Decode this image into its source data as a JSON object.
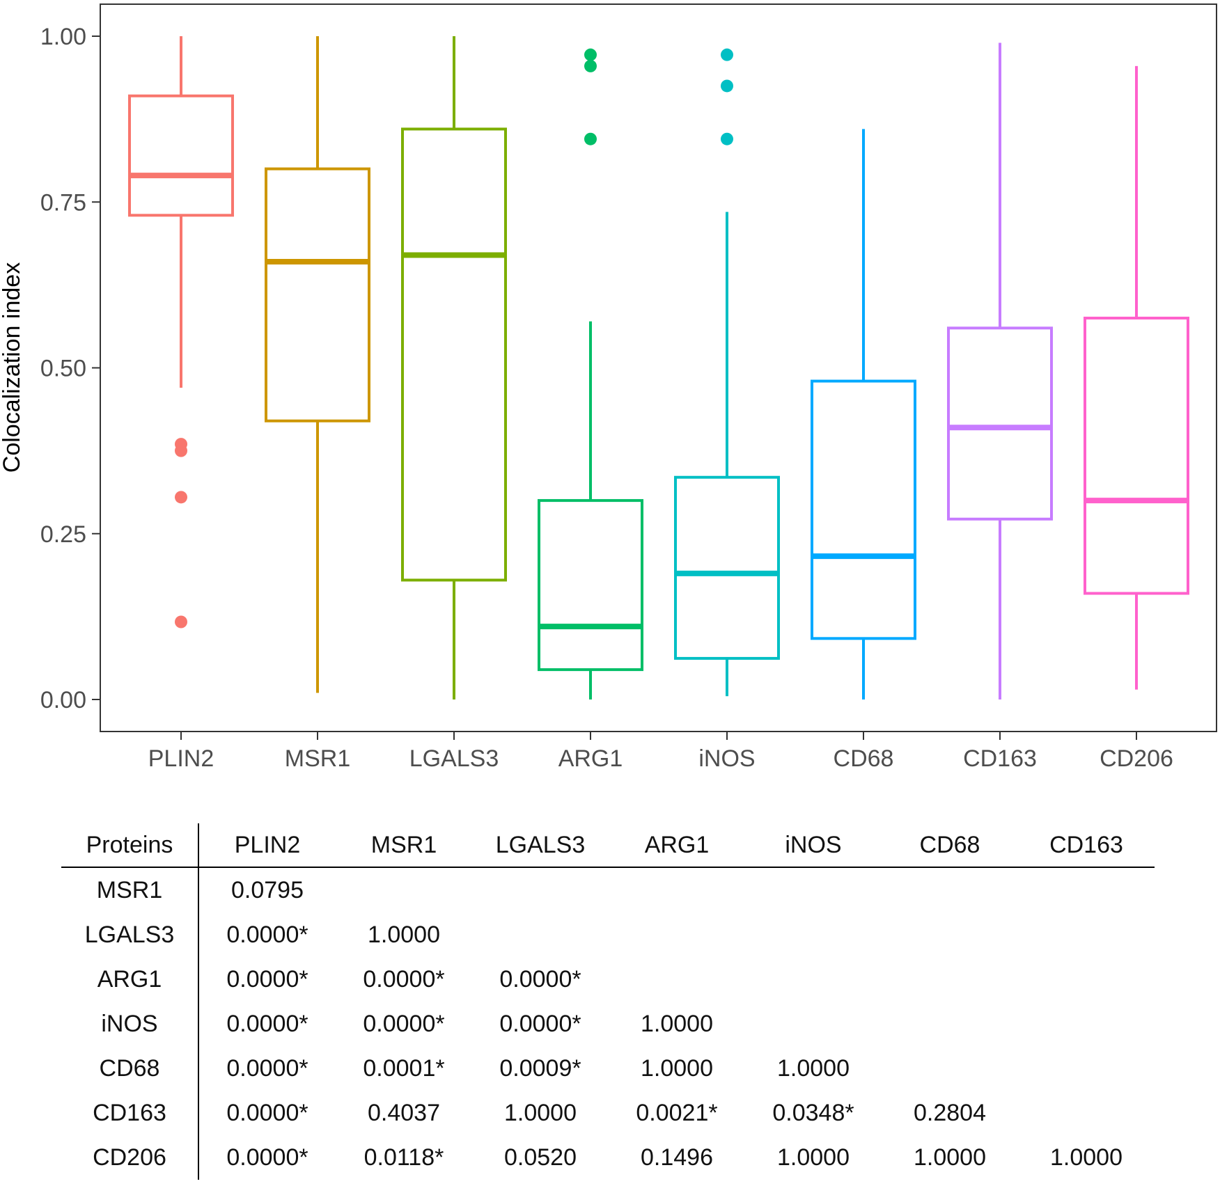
{
  "chart_data": {
    "type": "box",
    "ylabel": "Colocalization index",
    "xlabel": "",
    "ylim": [
      -0.05,
      1.05
    ],
    "yticks": [
      "0.00",
      "0.25",
      "0.50",
      "0.75",
      "1.00"
    ],
    "categories": [
      "PLIN2",
      "MSR1",
      "LGALS3",
      "ARG1",
      "iNOS",
      "CD68",
      "CD163",
      "CD206"
    ],
    "boxes": [
      {
        "name": "PLIN2",
        "color": "#F8766D",
        "min": 0.47,
        "q1": 0.73,
        "median": 0.79,
        "q3": 0.91,
        "max": 1.0,
        "outliers": [
          0.385,
          0.375,
          0.305,
          0.117
        ]
      },
      {
        "name": "MSR1",
        "color": "#CD9600",
        "min": 0.01,
        "q1": 0.42,
        "median": 0.66,
        "q3": 0.8,
        "max": 1.0,
        "outliers": []
      },
      {
        "name": "LGALS3",
        "color": "#7CAE00",
        "min": 0.0,
        "q1": 0.18,
        "median": 0.67,
        "q3": 0.86,
        "max": 1.0,
        "outliers": []
      },
      {
        "name": "ARG1",
        "color": "#00BE67",
        "min": 0.0,
        "q1": 0.045,
        "median": 0.11,
        "q3": 0.3,
        "max": 0.57,
        "outliers": [
          0.972,
          0.955,
          0.845
        ]
      },
      {
        "name": "iNOS",
        "color": "#00BFC4",
        "min": 0.005,
        "q1": 0.062,
        "median": 0.19,
        "q3": 0.335,
        "max": 0.735,
        "outliers": [
          0.972,
          0.925,
          0.845
        ]
      },
      {
        "name": "CD68",
        "color": "#00A9FF",
        "min": 0.0,
        "q1": 0.092,
        "median": 0.216,
        "q3": 0.48,
        "max": 0.86,
        "outliers": []
      },
      {
        "name": "CD163",
        "color": "#C77CFF",
        "min": 0.0,
        "q1": 0.272,
        "median": 0.41,
        "q3": 0.56,
        "max": 0.99,
        "outliers": []
      },
      {
        "name": "CD206",
        "color": "#FF61CC",
        "min": 0.015,
        "q1": 0.16,
        "median": 0.3,
        "q3": 0.575,
        "max": 0.955,
        "outliers": []
      }
    ]
  },
  "table": {
    "corner": "Proteins",
    "columns": [
      "PLIN2",
      "MSR1",
      "LGALS3",
      "ARG1",
      "iNOS",
      "CD68",
      "CD163"
    ],
    "rows": [
      {
        "label": "MSR1",
        "cells": [
          "0.0795",
          "",
          "",
          "",
          "",
          "",
          ""
        ]
      },
      {
        "label": "LGALS3",
        "cells": [
          "0.0000*",
          "1.0000",
          "",
          "",
          "",
          "",
          ""
        ]
      },
      {
        "label": "ARG1",
        "cells": [
          "0.0000*",
          "0.0000*",
          "0.0000*",
          "",
          "",
          "",
          ""
        ]
      },
      {
        "label": "iNOS",
        "cells": [
          "0.0000*",
          "0.0000*",
          "0.0000*",
          "1.0000",
          "",
          "",
          ""
        ]
      },
      {
        "label": "CD68",
        "cells": [
          "0.0000*",
          "0.0001*",
          "0.0009*",
          "1.0000",
          "1.0000",
          "",
          ""
        ]
      },
      {
        "label": "CD163",
        "cells": [
          "0.0000*",
          "0.4037",
          "1.0000",
          "0.0021*",
          "0.0348*",
          "0.2804",
          ""
        ]
      },
      {
        "label": "CD206",
        "cells": [
          "0.0000*",
          "0.0118*",
          "0.0520",
          "0.1496",
          "1.0000",
          "1.0000",
          "1.0000"
        ]
      }
    ]
  }
}
